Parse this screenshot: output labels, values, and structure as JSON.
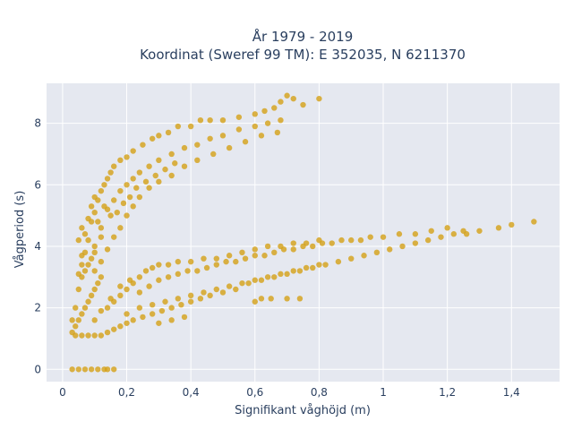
{
  "chart_data": {
    "type": "scatter",
    "title": "År 1979 - 2019",
    "subtitle": "Koordinat (Sweref 99 TM): E 352035, N 6211370",
    "xlabel": "Signifikant våghöjd (m)",
    "ylabel": "Vågperiod (s)",
    "xlim": [
      -0.05,
      1.55
    ],
    "ylim": [
      -0.4,
      9.3
    ],
    "x_ticks": [
      0,
      0.2,
      0.4,
      0.6,
      0.8,
      1,
      1.2,
      1.4
    ],
    "x_tick_labels": [
      "0",
      "0,2",
      "0,4",
      "0,6",
      "0,8",
      "1",
      "1,2",
      "1,4"
    ],
    "y_ticks": [
      0,
      2,
      4,
      6,
      8
    ],
    "y_tick_labels": [
      "0",
      "2",
      "4",
      "6",
      "8"
    ],
    "grid": true,
    "marker_color": "#D4A017",
    "plot_bgcolor": "#E5E8F0",
    "series": [
      {
        "points": [
          [
            0.03,
            0
          ],
          [
            0.05,
            0
          ],
          [
            0.07,
            0
          ],
          [
            0.09,
            0
          ],
          [
            0.11,
            0
          ],
          [
            0.13,
            0
          ],
          [
            0.14,
            0
          ],
          [
            0.16,
            0
          ],
          [
            0.03,
            1.6
          ],
          [
            0.04,
            2.0
          ],
          [
            0.05,
            2.6
          ],
          [
            0.06,
            3.4
          ],
          [
            0.05,
            4.2
          ],
          [
            0.06,
            4.6
          ],
          [
            0.07,
            3.8
          ],
          [
            0.08,
            4.2
          ],
          [
            0.09,
            4.8
          ],
          [
            0.1,
            5.1
          ],
          [
            0.11,
            5.5
          ],
          [
            0.12,
            5.8
          ],
          [
            0.13,
            6.0
          ],
          [
            0.14,
            6.2
          ],
          [
            0.15,
            6.4
          ],
          [
            0.16,
            6.6
          ],
          [
            0.18,
            6.8
          ],
          [
            0.2,
            6.9
          ],
          [
            0.22,
            7.1
          ],
          [
            0.25,
            7.3
          ],
          [
            0.28,
            7.5
          ],
          [
            0.3,
            7.6
          ],
          [
            0.33,
            7.7
          ],
          [
            0.36,
            7.9
          ],
          [
            0.4,
            7.9
          ],
          [
            0.43,
            8.1
          ],
          [
            0.46,
            8.1
          ],
          [
            0.5,
            8.1
          ],
          [
            0.55,
            8.2
          ],
          [
            0.6,
            8.3
          ],
          [
            0.63,
            8.4
          ],
          [
            0.66,
            8.5
          ],
          [
            0.68,
            8.7
          ],
          [
            0.7,
            8.9
          ],
          [
            0.72,
            8.8
          ],
          [
            0.75,
            8.6
          ],
          [
            0.8,
            8.8
          ],
          [
            0.08,
            3.4
          ],
          [
            0.1,
            4.0
          ],
          [
            0.12,
            4.6
          ],
          [
            0.14,
            5.2
          ],
          [
            0.16,
            5.5
          ],
          [
            0.18,
            5.8
          ],
          [
            0.2,
            6.0
          ],
          [
            0.22,
            6.2
          ],
          [
            0.24,
            6.4
          ],
          [
            0.27,
            6.6
          ],
          [
            0.3,
            6.8
          ],
          [
            0.34,
            7.0
          ],
          [
            0.38,
            7.2
          ],
          [
            0.42,
            7.3
          ],
          [
            0.46,
            7.5
          ],
          [
            0.5,
            7.6
          ],
          [
            0.55,
            7.8
          ],
          [
            0.6,
            7.9
          ],
          [
            0.64,
            8.0
          ],
          [
            0.68,
            8.1
          ],
          [
            0.06,
            3.0
          ],
          [
            0.07,
            3.2
          ],
          [
            0.09,
            3.6
          ],
          [
            0.1,
            3.8
          ],
          [
            0.12,
            4.3
          ],
          [
            0.11,
            4.8
          ],
          [
            0.13,
            5.3
          ],
          [
            0.15,
            5.0
          ],
          [
            0.17,
            5.1
          ],
          [
            0.19,
            5.4
          ],
          [
            0.21,
            5.6
          ],
          [
            0.23,
            5.9
          ],
          [
            0.26,
            6.1
          ],
          [
            0.29,
            6.3
          ],
          [
            0.32,
            6.5
          ],
          [
            0.35,
            6.7
          ],
          [
            0.05,
            3.1
          ],
          [
            0.06,
            3.7
          ],
          [
            0.07,
            4.4
          ],
          [
            0.08,
            4.9
          ],
          [
            0.09,
            5.3
          ],
          [
            0.1,
            5.6
          ],
          [
            0.1,
            3.2
          ],
          [
            0.12,
            3.5
          ],
          [
            0.14,
            3.9
          ],
          [
            0.16,
            4.3
          ],
          [
            0.18,
            4.6
          ],
          [
            0.2,
            5.0
          ],
          [
            0.22,
            5.3
          ],
          [
            0.24,
            5.6
          ],
          [
            0.27,
            5.9
          ],
          [
            0.3,
            6.1
          ],
          [
            0.34,
            6.3
          ],
          [
            0.38,
            6.6
          ],
          [
            0.42,
            6.8
          ],
          [
            0.47,
            7.0
          ],
          [
            0.52,
            7.2
          ],
          [
            0.57,
            7.4
          ],
          [
            0.62,
            7.6
          ],
          [
            0.67,
            7.7
          ],
          [
            0.03,
            1.2
          ],
          [
            0.04,
            1.4
          ],
          [
            0.05,
            1.6
          ],
          [
            0.06,
            1.8
          ],
          [
            0.07,
            2.0
          ],
          [
            0.08,
            2.2
          ],
          [
            0.09,
            2.4
          ],
          [
            0.1,
            2.6
          ],
          [
            0.11,
            2.8
          ],
          [
            0.12,
            3.0
          ],
          [
            0.04,
            1.1
          ],
          [
            0.06,
            1.1
          ],
          [
            0.08,
            1.1
          ],
          [
            0.1,
            1.1
          ],
          [
            0.12,
            1.1
          ],
          [
            0.14,
            1.2
          ],
          [
            0.16,
            1.3
          ],
          [
            0.18,
            1.4
          ],
          [
            0.2,
            1.5
          ],
          [
            0.22,
            1.6
          ],
          [
            0.25,
            1.7
          ],
          [
            0.28,
            1.8
          ],
          [
            0.31,
            1.9
          ],
          [
            0.34,
            2.0
          ],
          [
            0.37,
            2.1
          ],
          [
            0.4,
            2.2
          ],
          [
            0.43,
            2.3
          ],
          [
            0.46,
            2.4
          ],
          [
            0.5,
            2.5
          ],
          [
            0.54,
            2.6
          ],
          [
            0.58,
            2.8
          ],
          [
            0.62,
            2.9
          ],
          [
            0.66,
            3.0
          ],
          [
            0.7,
            3.1
          ],
          [
            0.74,
            3.2
          ],
          [
            0.78,
            3.3
          ],
          [
            0.82,
            3.4
          ],
          [
            0.86,
            3.5
          ],
          [
            0.9,
            3.6
          ],
          [
            0.94,
            3.7
          ],
          [
            0.98,
            3.8
          ],
          [
            1.02,
            3.9
          ],
          [
            1.06,
            4.0
          ],
          [
            1.1,
            4.1
          ],
          [
            1.14,
            4.2
          ],
          [
            1.18,
            4.3
          ],
          [
            1.22,
            4.4
          ],
          [
            1.26,
            4.4
          ],
          [
            1.3,
            4.5
          ],
          [
            1.36,
            4.6
          ],
          [
            1.4,
            4.7
          ],
          [
            1.47,
            4.8
          ],
          [
            0.14,
            2.0
          ],
          [
            0.16,
            2.2
          ],
          [
            0.18,
            2.4
          ],
          [
            0.2,
            2.6
          ],
          [
            0.22,
            2.8
          ],
          [
            0.24,
            3.0
          ],
          [
            0.26,
            3.2
          ],
          [
            0.28,
            3.3
          ],
          [
            0.3,
            3.4
          ],
          [
            0.33,
            3.4
          ],
          [
            0.36,
            3.5
          ],
          [
            0.4,
            3.5
          ],
          [
            0.44,
            3.6
          ],
          [
            0.48,
            3.6
          ],
          [
            0.52,
            3.7
          ],
          [
            0.56,
            3.8
          ],
          [
            0.6,
            3.9
          ],
          [
            0.64,
            4.0
          ],
          [
            0.68,
            4.0
          ],
          [
            0.72,
            4.1
          ],
          [
            0.76,
            4.1
          ],
          [
            0.8,
            4.2
          ],
          [
            0.1,
            1.6
          ],
          [
            0.12,
            1.9
          ],
          [
            0.15,
            2.3
          ],
          [
            0.18,
            2.7
          ],
          [
            0.21,
            2.9
          ],
          [
            0.24,
            2.5
          ],
          [
            0.27,
            2.7
          ],
          [
            0.3,
            2.9
          ],
          [
            0.33,
            3.0
          ],
          [
            0.36,
            3.1
          ],
          [
            0.39,
            3.2
          ],
          [
            0.42,
            3.2
          ],
          [
            0.45,
            3.3
          ],
          [
            0.48,
            3.4
          ],
          [
            0.51,
            3.5
          ],
          [
            0.54,
            3.5
          ],
          [
            0.57,
            3.6
          ],
          [
            0.6,
            3.7
          ],
          [
            0.63,
            3.7
          ],
          [
            0.66,
            3.8
          ],
          [
            0.69,
            3.9
          ],
          [
            0.72,
            3.9
          ],
          [
            0.75,
            4.0
          ],
          [
            0.78,
            4.0
          ],
          [
            0.81,
            4.1
          ],
          [
            0.84,
            4.1
          ],
          [
            0.87,
            4.2
          ],
          [
            0.9,
            4.2
          ],
          [
            0.93,
            4.2
          ],
          [
            0.96,
            4.3
          ],
          [
            1.0,
            4.3
          ],
          [
            1.05,
            4.4
          ],
          [
            1.1,
            4.4
          ],
          [
            1.15,
            4.5
          ],
          [
            1.2,
            4.6
          ],
          [
            1.25,
            4.5
          ],
          [
            0.2,
            1.8
          ],
          [
            0.24,
            2.0
          ],
          [
            0.28,
            2.1
          ],
          [
            0.32,
            2.2
          ],
          [
            0.36,
            2.3
          ],
          [
            0.4,
            2.4
          ],
          [
            0.44,
            2.5
          ],
          [
            0.48,
            2.6
          ],
          [
            0.52,
            2.7
          ],
          [
            0.56,
            2.8
          ],
          [
            0.6,
            2.9
          ],
          [
            0.64,
            3.0
          ],
          [
            0.68,
            3.1
          ],
          [
            0.72,
            3.2
          ],
          [
            0.76,
            3.3
          ],
          [
            0.8,
            3.4
          ],
          [
            0.6,
            2.2
          ],
          [
            0.62,
            2.3
          ],
          [
            0.65,
            2.3
          ],
          [
            0.7,
            2.3
          ],
          [
            0.74,
            2.3
          ],
          [
            0.3,
            1.5
          ],
          [
            0.34,
            1.6
          ],
          [
            0.38,
            1.7
          ]
        ]
      }
    ]
  }
}
